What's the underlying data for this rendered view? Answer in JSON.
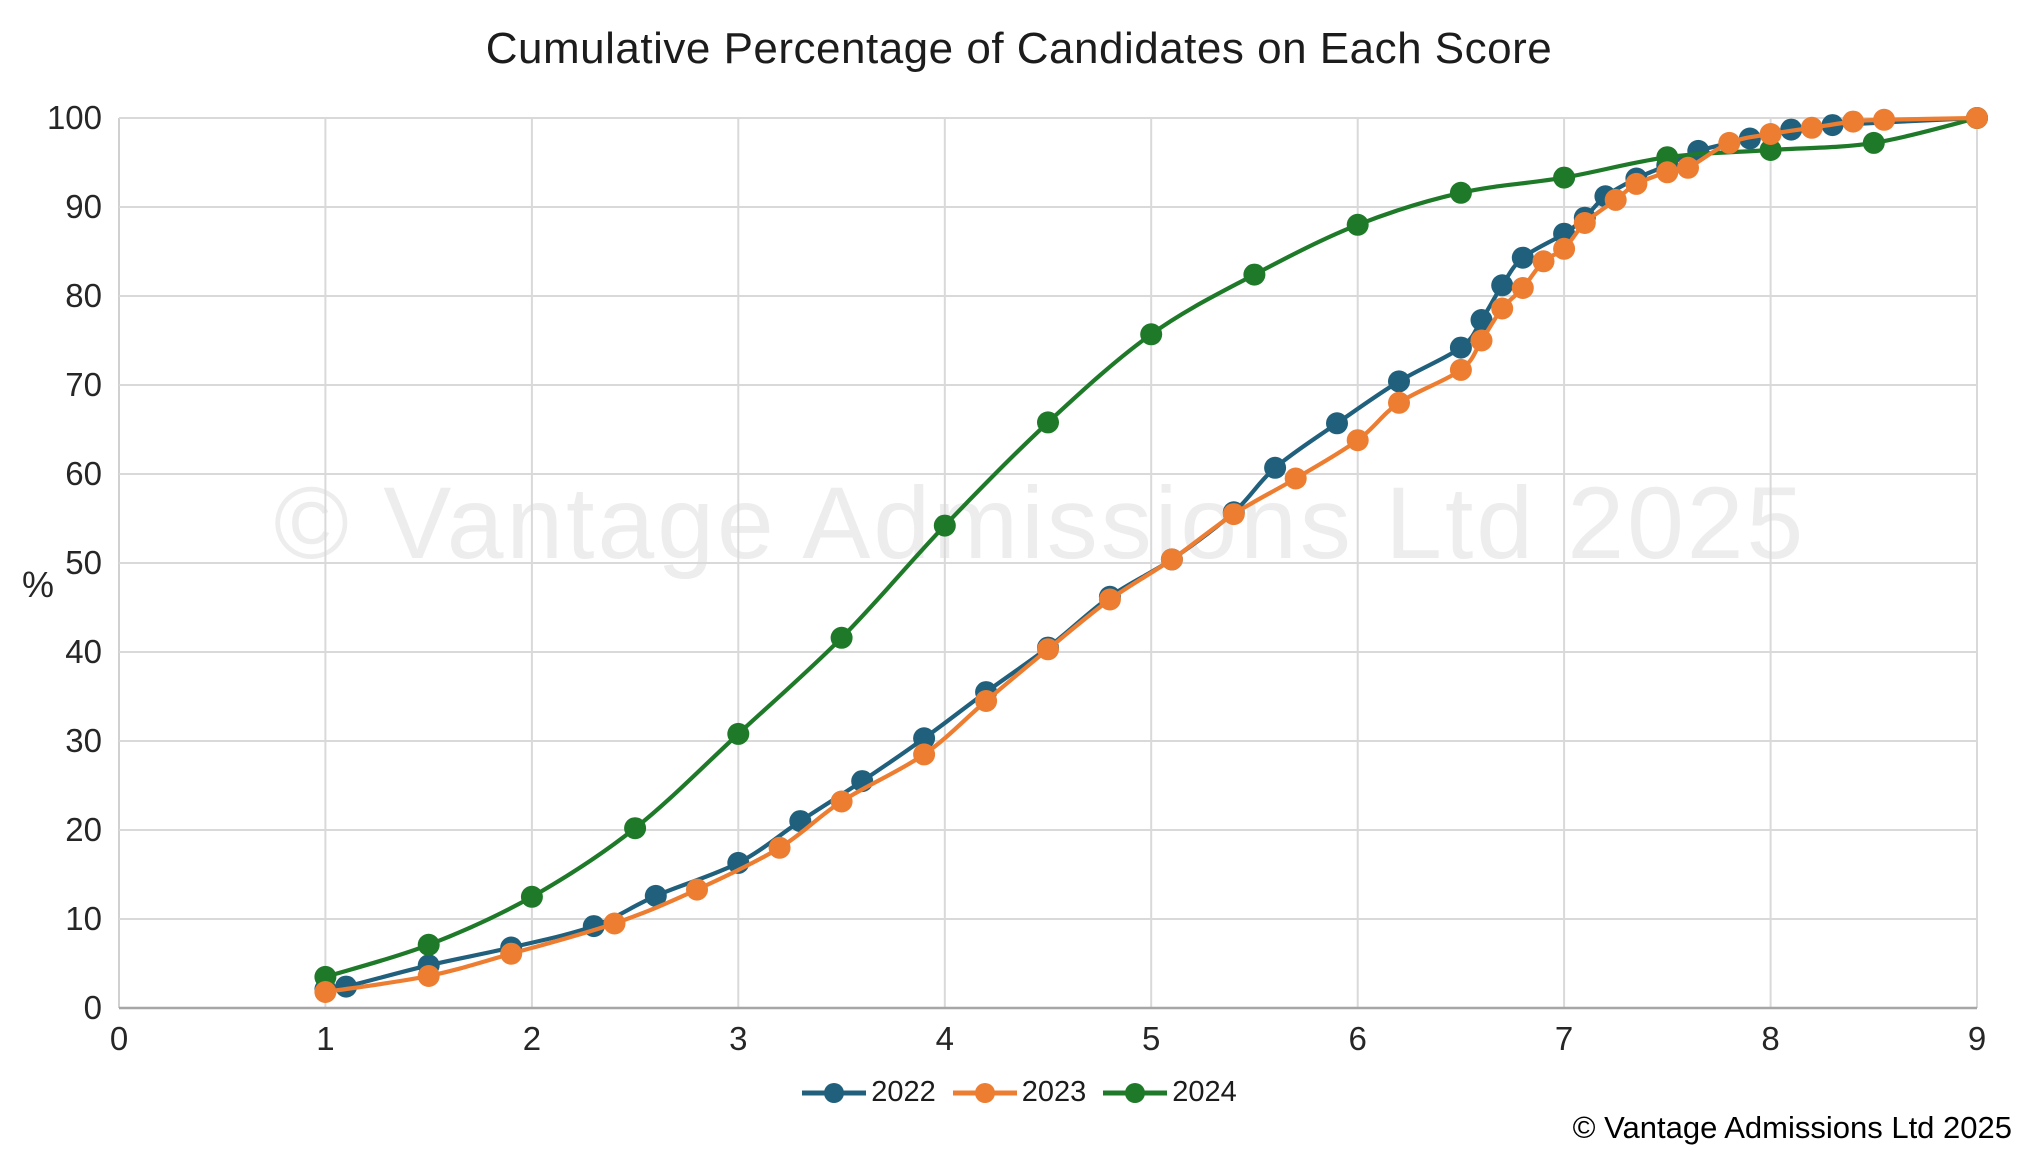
{
  "watermark": {
    "text": "© Vantage Admissions Ltd 2025"
  },
  "footer": {
    "copyright": "© Vantage Admissions Ltd 2025"
  },
  "colors": {
    "background": "#ffffff",
    "grid": "#d9d9d9",
    "axis": "#a6a6a6",
    "plot_border": "#d0d0d0",
    "title_text": "#1c1c1c",
    "tick_text": "#262626",
    "watermark": "#ededed",
    "series_2022": "#20607C",
    "series_2023": "#ED7D31",
    "series_2024": "#1E7A28"
  },
  "chart_data": {
    "type": "line",
    "title": "Cumulative Percentage of Candidates on Each Score",
    "xlabel": "",
    "ylabel": "%",
    "xlim": [
      0,
      9
    ],
    "ylim": [
      0,
      100
    ],
    "x_ticks": [
      0,
      1,
      2,
      3,
      4,
      5,
      6,
      7,
      8,
      9
    ],
    "y_ticks": [
      0,
      10,
      20,
      30,
      40,
      50,
      60,
      70,
      80,
      90,
      100
    ],
    "grid": true,
    "smooth": true,
    "markers": true,
    "legend_position": "bottom",
    "draw_order": [
      0,
      2,
      1
    ],
    "series": [
      {
        "name": "2022",
        "color": "#20607C",
        "points": [
          [
            1.0,
            2.1
          ],
          [
            1.1,
            2.4
          ],
          [
            1.5,
            4.8
          ],
          [
            1.9,
            6.8
          ],
          [
            2.3,
            9.2
          ],
          [
            2.6,
            12.6
          ],
          [
            3.0,
            16.3
          ],
          [
            3.3,
            21.0
          ],
          [
            3.6,
            25.5
          ],
          [
            3.9,
            30.3
          ],
          [
            4.2,
            35.5
          ],
          [
            4.5,
            40.5
          ],
          [
            4.8,
            46.2
          ],
          [
            5.1,
            50.4
          ],
          [
            5.4,
            55.7
          ],
          [
            5.6,
            60.7
          ],
          [
            5.9,
            65.7
          ],
          [
            6.2,
            70.4
          ],
          [
            6.5,
            74.2
          ],
          [
            6.6,
            77.3
          ],
          [
            6.7,
            81.2
          ],
          [
            6.8,
            84.3
          ],
          [
            7.0,
            87.0
          ],
          [
            7.1,
            88.8
          ],
          [
            7.2,
            91.2
          ],
          [
            7.35,
            93.2
          ],
          [
            7.5,
            94.7
          ],
          [
            7.65,
            96.3
          ],
          [
            7.9,
            97.7
          ],
          [
            8.1,
            98.7
          ],
          [
            8.3,
            99.2
          ],
          [
            9.0,
            100.0
          ]
        ]
      },
      {
        "name": "2023",
        "color": "#ED7D31",
        "points": [
          [
            1.0,
            1.8
          ],
          [
            1.5,
            3.6
          ],
          [
            1.9,
            6.1
          ],
          [
            2.4,
            9.5
          ],
          [
            2.8,
            13.3
          ],
          [
            3.2,
            18.0
          ],
          [
            3.5,
            23.2
          ],
          [
            3.9,
            28.5
          ],
          [
            4.2,
            34.5
          ],
          [
            4.5,
            40.3
          ],
          [
            4.8,
            45.9
          ],
          [
            5.1,
            50.4
          ],
          [
            5.4,
            55.5
          ],
          [
            5.7,
            59.5
          ],
          [
            6.0,
            63.8
          ],
          [
            6.2,
            68.0
          ],
          [
            6.5,
            71.7
          ],
          [
            6.6,
            75.0
          ],
          [
            6.7,
            78.6
          ],
          [
            6.8,
            80.9
          ],
          [
            6.9,
            83.9
          ],
          [
            7.0,
            85.3
          ],
          [
            7.1,
            88.2
          ],
          [
            7.25,
            90.8
          ],
          [
            7.35,
            92.6
          ],
          [
            7.5,
            93.9
          ],
          [
            7.6,
            94.4
          ],
          [
            7.8,
            97.2
          ],
          [
            8.0,
            98.2
          ],
          [
            8.2,
            98.9
          ],
          [
            8.4,
            99.6
          ],
          [
            8.55,
            99.8
          ],
          [
            9.0,
            100.0
          ]
        ]
      },
      {
        "name": "2024",
        "color": "#1E7A28",
        "points": [
          [
            1.0,
            3.5
          ],
          [
            1.5,
            7.1
          ],
          [
            2.0,
            12.5
          ],
          [
            2.5,
            20.2
          ],
          [
            3.0,
            30.8
          ],
          [
            3.5,
            41.6
          ],
          [
            4.0,
            54.2
          ],
          [
            4.5,
            65.8
          ],
          [
            5.0,
            75.7
          ],
          [
            5.5,
            82.4
          ],
          [
            6.0,
            88.0
          ],
          [
            6.5,
            91.6
          ],
          [
            7.0,
            93.3
          ],
          [
            7.5,
            95.6
          ],
          [
            8.0,
            96.4
          ],
          [
            8.5,
            97.2
          ],
          [
            9.0,
            100.0
          ]
        ]
      }
    ]
  }
}
